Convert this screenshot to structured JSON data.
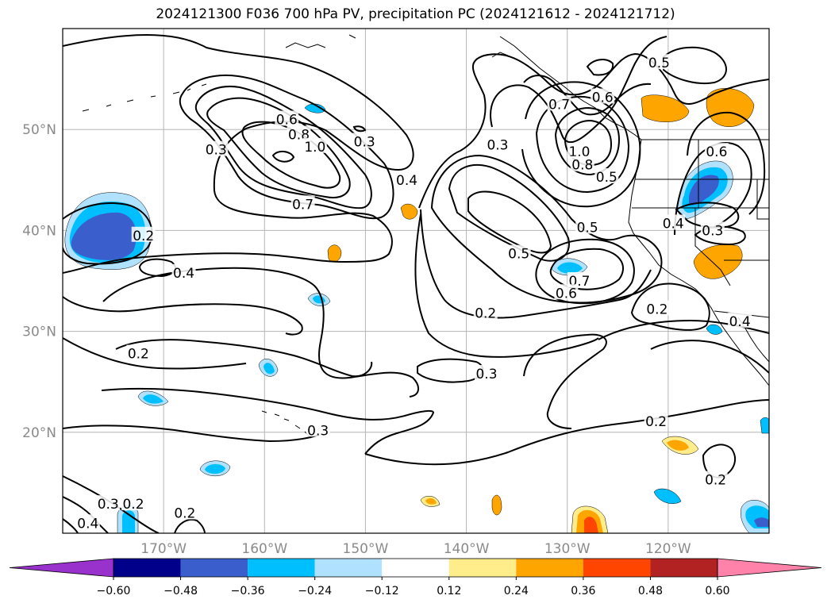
{
  "title": "2024121300 F036 700 hPa PV, precipitation PC (2024121612 - 2024121712)",
  "map": {
    "lat_labels": [
      {
        "deg": 50,
        "label": "50°N"
      },
      {
        "deg": 40,
        "label": "40°N"
      },
      {
        "deg": 30,
        "label": "30°N"
      },
      {
        "deg": 20,
        "label": "20°N"
      }
    ],
    "lon_labels": [
      {
        "deg": -170,
        "label": "170°W"
      },
      {
        "deg": -160,
        "label": "160°W"
      },
      {
        "deg": -150,
        "label": "150°W"
      },
      {
        "deg": -140,
        "label": "140°W"
      },
      {
        "deg": -130,
        "label": "130°W"
      },
      {
        "deg": -120,
        "label": "120°W"
      }
    ],
    "contour_labels": [
      {
        "text": "0.2",
        "lat": 39.5,
        "lon": -172.0
      },
      {
        "text": "0.4",
        "lat": 35.8,
        "lon": -168.0
      },
      {
        "text": "0.2",
        "lat": 27.8,
        "lon": -172.5
      },
      {
        "text": "0.3",
        "lat": 12.9,
        "lon": -175.5
      },
      {
        "text": "0.2",
        "lat": 12.9,
        "lon": -173.0
      },
      {
        "text": "0.4",
        "lat": 11.0,
        "lon": -177.5
      },
      {
        "text": "0.2",
        "lat": 12.0,
        "lon": -167.9
      },
      {
        "text": "0.3",
        "lat": 48.0,
        "lon": -164.8
      },
      {
        "text": "0.6",
        "lat": 51.0,
        "lon": -157.8
      },
      {
        "text": "0.8",
        "lat": 49.5,
        "lon": -156.6
      },
      {
        "text": "1.0",
        "lat": 48.3,
        "lon": -155.0
      },
      {
        "text": "0.3",
        "lat": 48.8,
        "lon": -150.1
      },
      {
        "text": "0.4",
        "lat": 45.0,
        "lon": -145.9
      },
      {
        "text": "0.7",
        "lat": 42.6,
        "lon": -156.2
      },
      {
        "text": "0.3",
        "lat": 48.5,
        "lon": -136.9
      },
      {
        "text": "0.7",
        "lat": 52.5,
        "lon": -130.8
      },
      {
        "text": "0.6",
        "lat": 53.2,
        "lon": -126.5
      },
      {
        "text": "1.0",
        "lat": 47.8,
        "lon": -128.8
      },
      {
        "text": "0.8",
        "lat": 46.5,
        "lon": -128.5
      },
      {
        "text": "0.5",
        "lat": 45.3,
        "lon": -126.1
      },
      {
        "text": "0.5",
        "lat": 56.6,
        "lon": -120.9
      },
      {
        "text": "0.6",
        "lat": 47.8,
        "lon": -115.2
      },
      {
        "text": "0.5",
        "lat": 40.3,
        "lon": -128.0
      },
      {
        "text": "0.5",
        "lat": 37.7,
        "lon": -134.8
      },
      {
        "text": "0.7",
        "lat": 35.0,
        "lon": -128.8
      },
      {
        "text": "0.6",
        "lat": 33.8,
        "lon": -130.1
      },
      {
        "text": "0.2",
        "lat": 31.8,
        "lon": -138.1
      },
      {
        "text": "0.2",
        "lat": 32.2,
        "lon": -121.1
      },
      {
        "text": "0.4",
        "lat": 40.7,
        "lon": -119.5
      },
      {
        "text": "0.3",
        "lat": 40.0,
        "lon": -115.6
      },
      {
        "text": "0.4",
        "lat": 31.0,
        "lon": -112.9
      },
      {
        "text": "0.3",
        "lat": 25.8,
        "lon": -138.0
      },
      {
        "text": "0.2",
        "lat": 21.1,
        "lon": -121.2
      },
      {
        "text": "0.3",
        "lat": 20.2,
        "lon": -154.7
      },
      {
        "text": "0.2",
        "lat": 15.3,
        "lon": -115.3
      }
    ]
  },
  "colorbar": {
    "ticks": [
      "−0.60",
      "−0.48",
      "−0.36",
      "−0.24",
      "−0.12",
      "0.12",
      "0.24",
      "0.36",
      "0.48",
      "0.60"
    ],
    "colors": [
      "#9932cc",
      "#00008b",
      "#3a5fcd",
      "#00bfff",
      "#b0e2ff",
      "#ffffff",
      "#ffec8b",
      "#ffa500",
      "#ff4500",
      "#b22222",
      "#ff82ab"
    ]
  }
}
